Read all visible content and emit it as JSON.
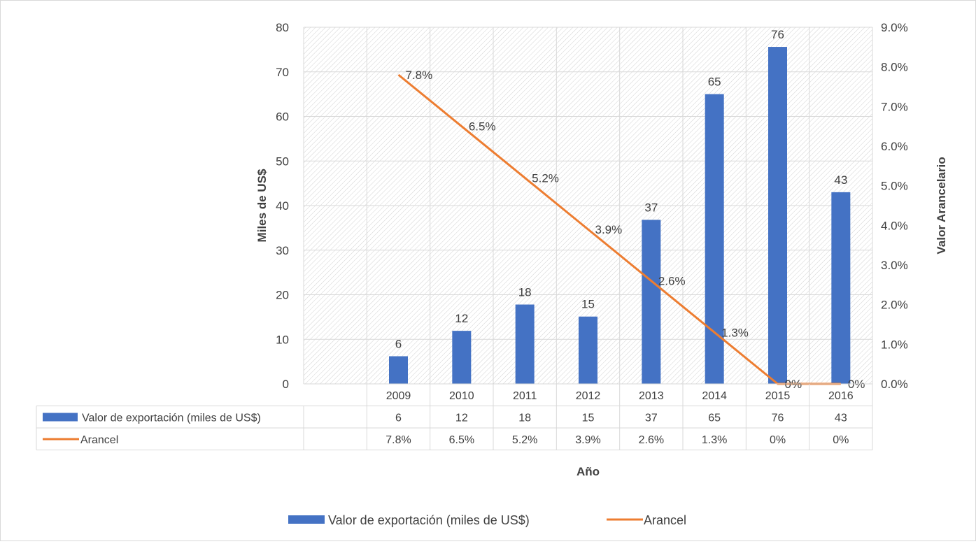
{
  "chart_data": {
    "type": "bar",
    "xlabel": "Año",
    "ylabel_left": "Miles de US$",
    "ylabel_right": "Valor Arancelario",
    "categories": [
      "2009",
      "2010",
      "2011",
      "2012",
      "2013",
      "2014",
      "2015",
      "2016"
    ],
    "left_axis": {
      "min": 0,
      "max": 80,
      "ticks": [
        "0",
        "10",
        "20",
        "30",
        "40",
        "50",
        "60",
        "70",
        "80"
      ]
    },
    "right_axis": {
      "min": 0,
      "max": 9,
      "unit": "%",
      "ticks": [
        "0.0%",
        "1.0%",
        "2.0%",
        "3.0%",
        "4.0%",
        "5.0%",
        "6.0%",
        "7.0%",
        "8.0%",
        "9.0%"
      ]
    },
    "grid": true,
    "legend_position": "bottom",
    "series": [
      {
        "name": "Valor de exportación (miles de US$)",
        "type": "bar",
        "axis": "left",
        "color": "#4472C4",
        "values": [
          6.2,
          11.9,
          17.8,
          15.1,
          36.8,
          65,
          75.6,
          43
        ],
        "labels": [
          "6",
          "12",
          "18",
          "15",
          "37",
          "65",
          "76",
          "43"
        ]
      },
      {
        "name": "Arancel",
        "type": "line",
        "axis": "right",
        "color": "#ED7D31",
        "values": [
          7.8,
          6.5,
          5.2,
          3.9,
          2.6,
          1.3,
          0,
          0
        ],
        "labels": [
          "7.8%",
          "6.5%",
          "5.2%",
          "3.9%",
          "2.6%",
          "1.3%",
          "0%",
          "0%"
        ]
      }
    ]
  }
}
